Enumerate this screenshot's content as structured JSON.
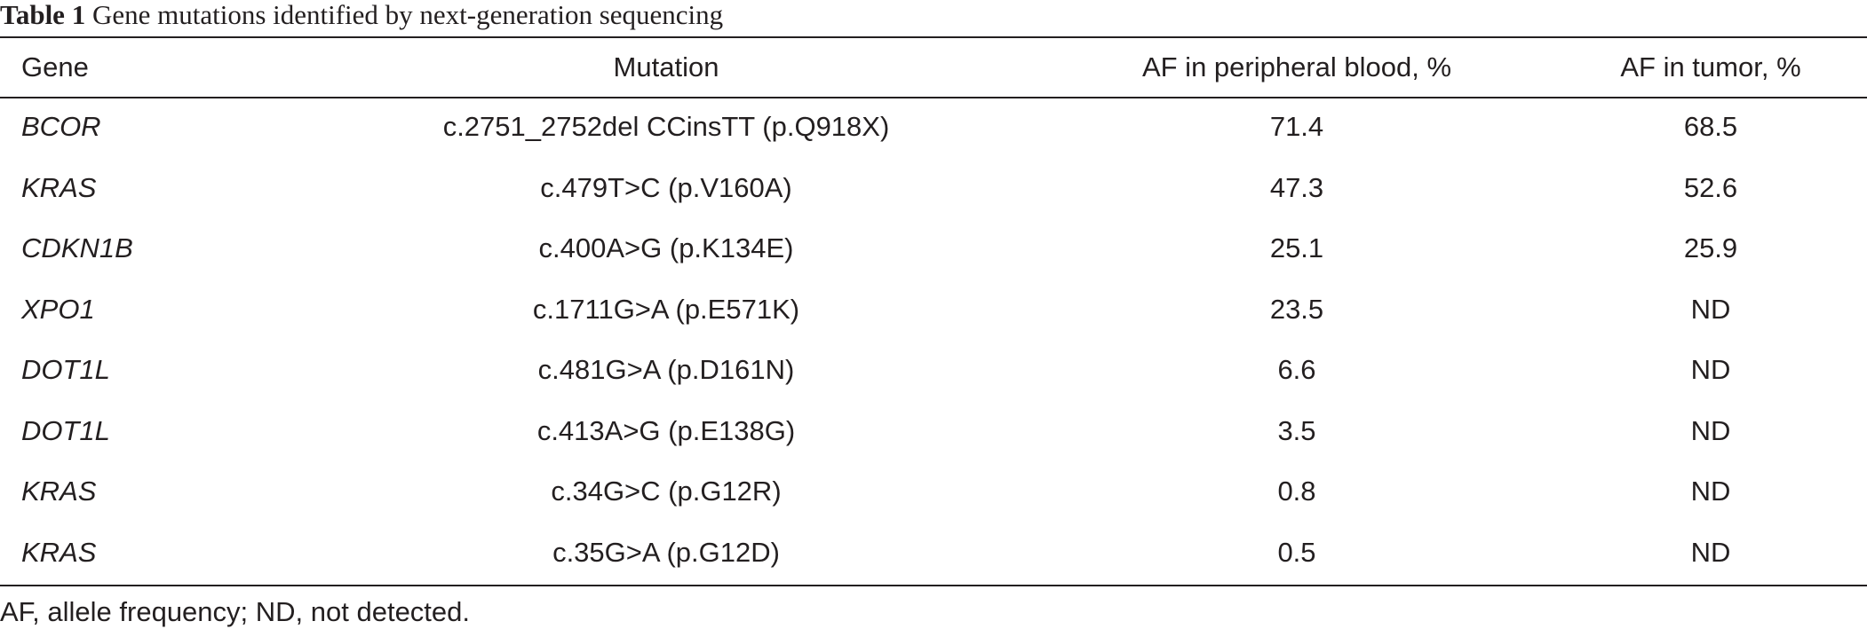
{
  "caption": {
    "label": "Table 1",
    "text": "Gene mutations identified by next-generation sequencing"
  },
  "table": {
    "headers": [
      "Gene",
      "Mutation",
      "AF in peripheral blood, %",
      "AF in tumor, %"
    ],
    "rows": [
      {
        "gene": "BCOR",
        "mutation": "c.2751_2752del CCinsTT (p.Q918X)",
        "af_blood": "71.4",
        "af_tumor": "68.5"
      },
      {
        "gene": "KRAS",
        "mutation": "c.479T>C (p.V160A)",
        "af_blood": "47.3",
        "af_tumor": "52.6"
      },
      {
        "gene": "CDKN1B",
        "mutation": "c.400A>G (p.K134E)",
        "af_blood": "25.1",
        "af_tumor": "25.9"
      },
      {
        "gene": "XPO1",
        "mutation": "c.1711G>A (p.E571K)",
        "af_blood": "23.5",
        "af_tumor": "ND"
      },
      {
        "gene": "DOT1L",
        "mutation": "c.481G>A (p.D161N)",
        "af_blood": "6.6",
        "af_tumor": "ND"
      },
      {
        "gene": "DOT1L",
        "mutation": "c.413A>G (p.E138G)",
        "af_blood": "3.5",
        "af_tumor": "ND"
      },
      {
        "gene": "KRAS",
        "mutation": "c.34G>C (p.G12R)",
        "af_blood": "0.8",
        "af_tumor": "ND"
      },
      {
        "gene": "KRAS",
        "mutation": "c.35G>A (p.G12D)",
        "af_blood": "0.5",
        "af_tumor": "ND"
      }
    ]
  },
  "footnote": "AF, allele frequency; ND, not detected."
}
